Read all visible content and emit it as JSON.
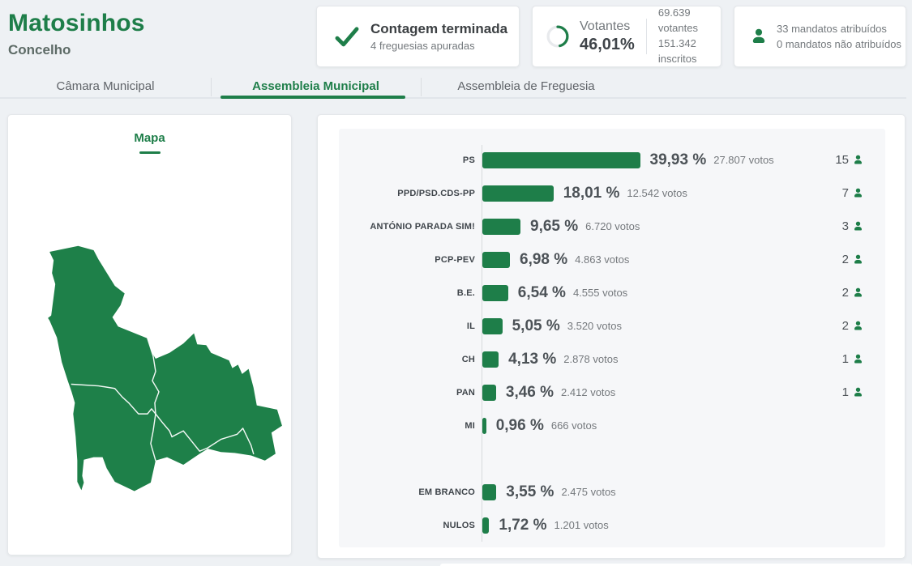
{
  "header": {
    "title": "Matosinhos",
    "subtitle": "Concelho"
  },
  "status_cards": {
    "counting": {
      "title": "Contagem terminada",
      "subtitle": "4 freguesias apuradas",
      "icon": "check-icon"
    },
    "turnout": {
      "label": "Votantes",
      "percent_label": "46,01%",
      "percent_value": 46.01,
      "voters": "69.639 votantes",
      "registered": "151.342 inscritos",
      "icon": "donut-progress-icon"
    },
    "mandates": {
      "assigned": "33 mandatos atribuídos",
      "unassigned": "0 mandatos não atribuídos",
      "icon": "person-icon"
    }
  },
  "tabs": [
    {
      "label": "Câmara Municipal",
      "active": false
    },
    {
      "label": "Assembleia Municipal",
      "active": true
    },
    {
      "label": "Assembleia de Freguesia",
      "active": false
    }
  ],
  "map": {
    "title": "Mapa"
  },
  "chart_data": {
    "type": "bar",
    "orientation": "horizontal",
    "unit": "%",
    "title": "",
    "xlim": [
      0,
      40
    ],
    "grid": false,
    "bar_color": "#1e7e49",
    "series": [
      {
        "label": "PS",
        "percent": 39.93,
        "percent_label": "39,93 %",
        "votes": 27807,
        "votes_label": "27.807 votos",
        "mandates": 15,
        "group": "parties"
      },
      {
        "label": "PPD/PSD.CDS-PP",
        "percent": 18.01,
        "percent_label": "18,01 %",
        "votes": 12542,
        "votes_label": "12.542 votos",
        "mandates": 7,
        "group": "parties"
      },
      {
        "label": "ANTÓNIO PARADA SIM!",
        "percent": 9.65,
        "percent_label": "9,65 %",
        "votes": 6720,
        "votes_label": "6.720 votos",
        "mandates": 3,
        "group": "parties"
      },
      {
        "label": "PCP-PEV",
        "percent": 6.98,
        "percent_label": "6,98 %",
        "votes": 4863,
        "votes_label": "4.863 votos",
        "mandates": 2,
        "group": "parties"
      },
      {
        "label": "B.E.",
        "percent": 6.54,
        "percent_label": "6,54 %",
        "votes": 4555,
        "votes_label": "4.555 votos",
        "mandates": 2,
        "group": "parties"
      },
      {
        "label": "IL",
        "percent": 5.05,
        "percent_label": "5,05 %",
        "votes": 3520,
        "votes_label": "3.520 votos",
        "mandates": 2,
        "group": "parties"
      },
      {
        "label": "CH",
        "percent": 4.13,
        "percent_label": "4,13 %",
        "votes": 2878,
        "votes_label": "2.878 votos",
        "mandates": 1,
        "group": "parties"
      },
      {
        "label": "PAN",
        "percent": 3.46,
        "percent_label": "3,46 %",
        "votes": 2412,
        "votes_label": "2.412 votos",
        "mandates": 1,
        "group": "parties"
      },
      {
        "label": "MI",
        "percent": 0.96,
        "percent_label": "0,96 %",
        "votes": 666,
        "votes_label": "666 votos",
        "mandates": null,
        "group": "parties"
      },
      {
        "label": "EM BRANCO",
        "percent": 3.55,
        "percent_label": "3,55 %",
        "votes": 2475,
        "votes_label": "2.475 votos",
        "mandates": null,
        "group": "blank_null"
      },
      {
        "label": "NULOS",
        "percent": 1.72,
        "percent_label": "1,72 %",
        "votes": 1201,
        "votes_label": "1.201 votos",
        "mandates": null,
        "group": "blank_null"
      }
    ]
  },
  "colors": {
    "accent_green": "#1e7e49",
    "page_background": "#eef1f4",
    "card_background": "#ffffff",
    "chart_panel_background": "#f6f7f9",
    "dark_text": "#3c4043",
    "muted_text": "#74797d"
  }
}
